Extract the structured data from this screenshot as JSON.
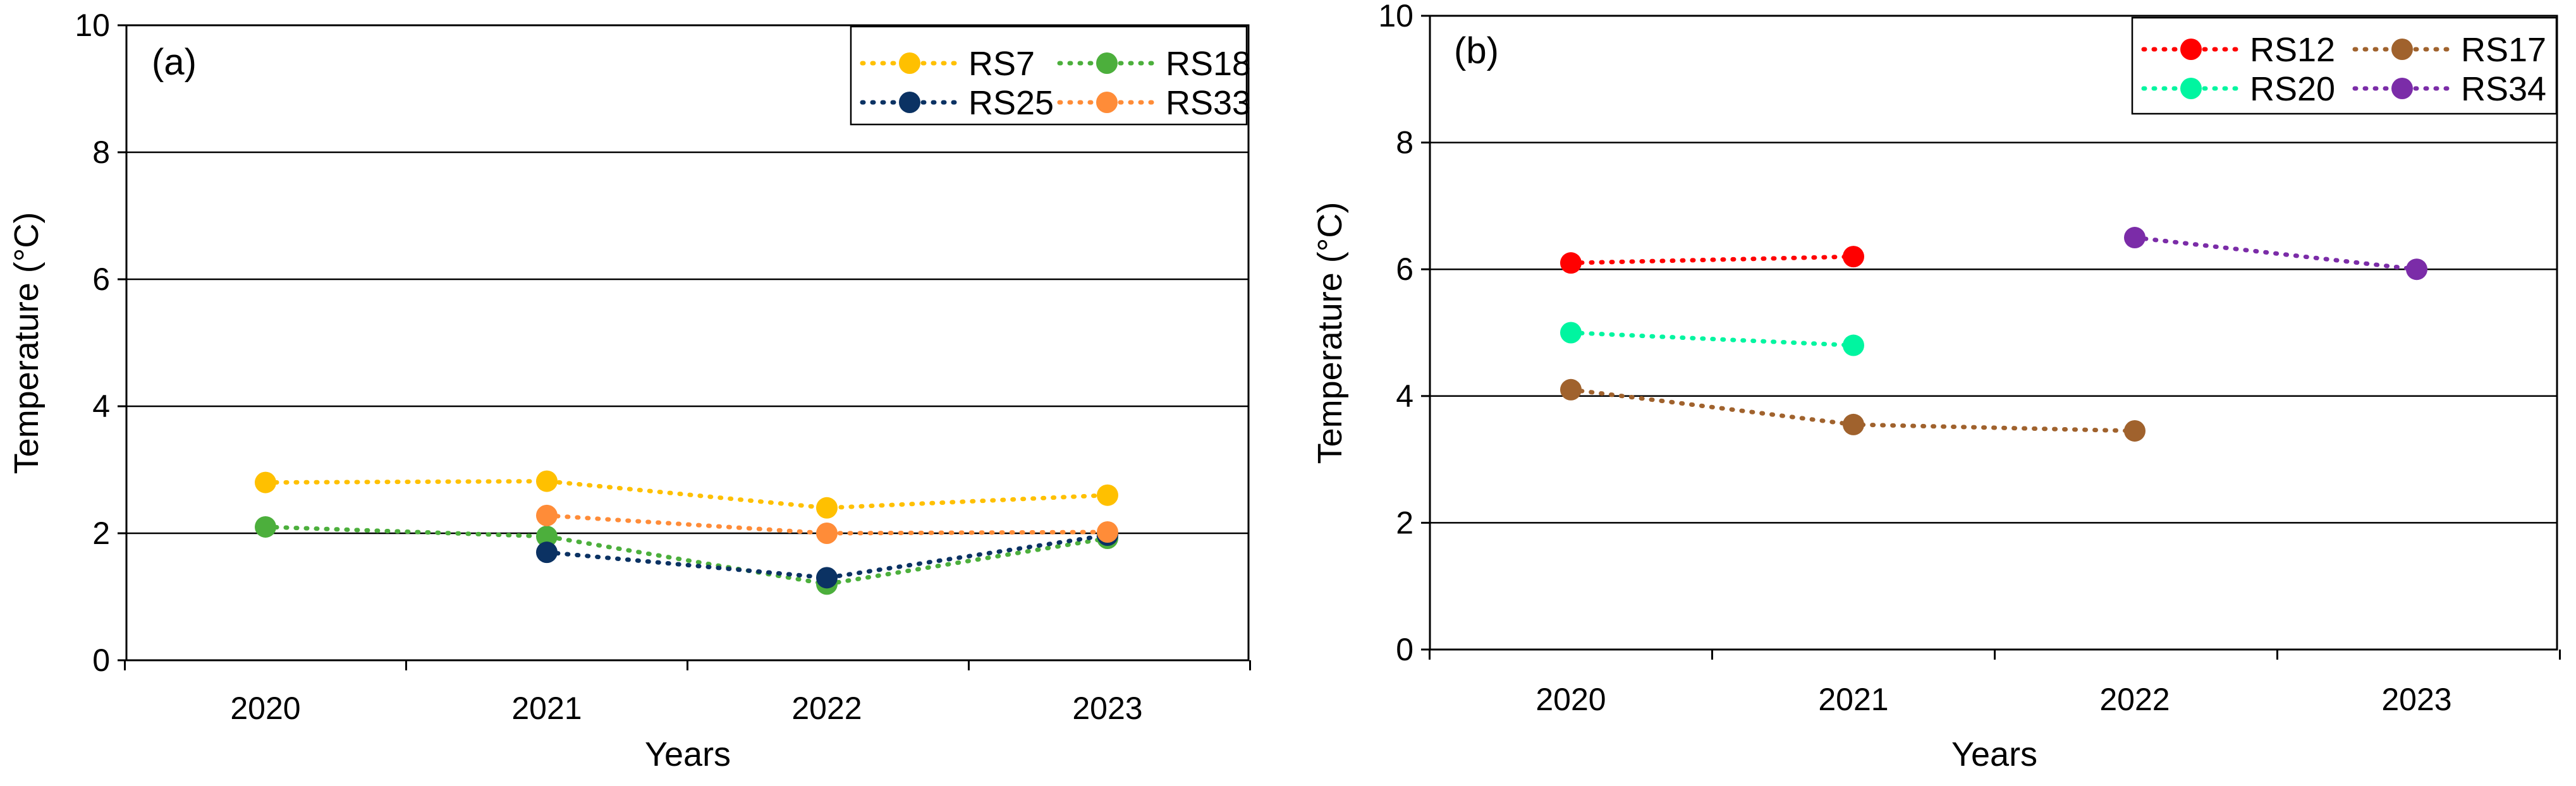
{
  "chart_data": [
    {
      "type": "line",
      "panel_label": "(a)",
      "categories": [
        "2020",
        "2021",
        "2022",
        "2023"
      ],
      "xlabel": "Years",
      "ylabel": "Temperature (°C)",
      "ylim": [
        0,
        10
      ],
      "yticks": [
        "0",
        "2",
        "4",
        "6",
        "8",
        "10"
      ],
      "grid": true,
      "legend_position": "top-right",
      "series": [
        {
          "name": "RS7",
          "color": "#FFC000",
          "values": [
            2.8,
            2.82,
            2.4,
            2.6
          ]
        },
        {
          "name": "RS18",
          "color": "#4CAF3C",
          "values": [
            2.1,
            1.95,
            1.2,
            1.92
          ]
        },
        {
          "name": "RS25",
          "color": "#0B3263",
          "values": [
            null,
            1.7,
            1.3,
            1.97
          ]
        },
        {
          "name": "RS33",
          "color": "#FF8C38",
          "values": [
            null,
            2.28,
            2.0,
            2.02
          ]
        }
      ]
    },
    {
      "type": "line",
      "panel_label": "(b)",
      "categories": [
        "2020",
        "2021",
        "2022",
        "2023"
      ],
      "xlabel": "Years",
      "ylabel": "Temperature (°C)",
      "ylim": [
        0,
        10
      ],
      "yticks": [
        "0",
        "2",
        "4",
        "6",
        "8",
        "10"
      ],
      "grid": true,
      "legend_position": "top-right",
      "series": [
        {
          "name": "RS12",
          "color": "#FF0000",
          "values": [
            6.1,
            6.2,
            null,
            null
          ]
        },
        {
          "name": "RS17",
          "color": "#A0622D",
          "values": [
            4.1,
            3.55,
            3.45,
            null
          ]
        },
        {
          "name": "RS20",
          "color": "#00F5A0",
          "values": [
            5.0,
            4.8,
            null,
            null
          ]
        },
        {
          "name": "RS34",
          "color": "#7B2CA8",
          "values": [
            null,
            null,
            6.5,
            6.0
          ]
        }
      ]
    }
  ]
}
